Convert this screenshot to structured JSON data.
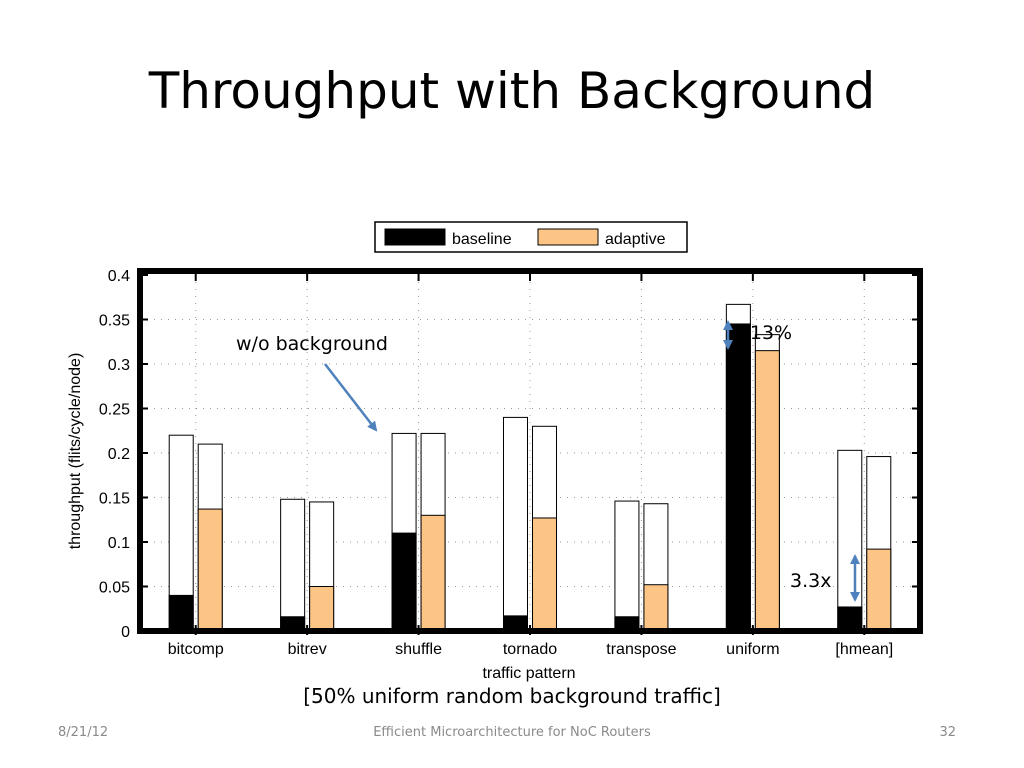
{
  "slide": {
    "title": "Throughput with Background",
    "caption": "[50% uniform random background traffic]",
    "footer_date": "8/21/12",
    "footer_center": "Efficient Microarchitecture for NoC Routers",
    "footer_page": "32"
  },
  "chart_data": {
    "type": "bar",
    "title": "",
    "xlabel": "traffic pattern",
    "ylabel": "throughput (flits/cycle/node)",
    "ylim": [
      0,
      0.4
    ],
    "yticks": [
      "0",
      "0.05",
      "0.1",
      "0.15",
      "0.2",
      "0.25",
      "0.3",
      "0.35",
      "0.4"
    ],
    "grid": true,
    "legend_position": "top",
    "categories": [
      "bitcomp",
      "bitrev",
      "shuffle",
      "tornado",
      "transpose",
      "uniform",
      "[hmean]"
    ],
    "series": [
      {
        "name": "baseline",
        "color": "#000000",
        "values": [
          0.04,
          0.016,
          0.11,
          0.017,
          0.016,
          0.345,
          0.027
        ]
      },
      {
        "name": "adaptive",
        "color": "#fdc585",
        "values": [
          0.137,
          0.05,
          0.13,
          0.127,
          0.052,
          0.315,
          0.092
        ]
      }
    ],
    "without_background": {
      "baseline": [
        0.22,
        0.148,
        0.222,
        0.24,
        0.146,
        0.367,
        0.203
      ],
      "adaptive": [
        0.21,
        0.145,
        0.222,
        0.23,
        0.143,
        0.333,
        0.196
      ]
    },
    "annotations": {
      "wo_background": "w/o background",
      "uniform_delta": "-13%",
      "hmean_ratio": "3.3x"
    }
  }
}
